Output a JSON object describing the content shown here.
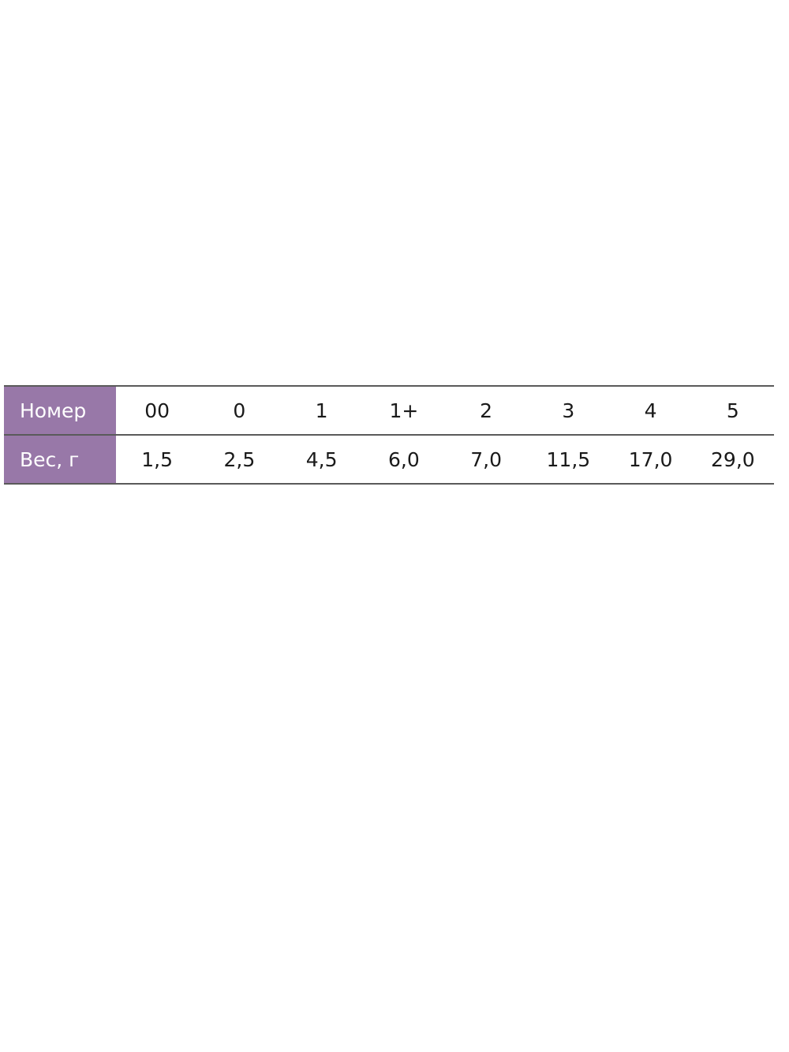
{
  "table": {
    "header_color": "#9878a8",
    "rows": [
      {
        "label": "Номер",
        "cells": [
          "00",
          "0",
          "1",
          "1+",
          "2",
          "3",
          "4",
          "5"
        ]
      },
      {
        "label": "Вес, г",
        "cells": [
          "1,5",
          "2,5",
          "4,5",
          "6,0",
          "7,0",
          "11,5",
          "17,0",
          "29,0"
        ]
      }
    ]
  }
}
